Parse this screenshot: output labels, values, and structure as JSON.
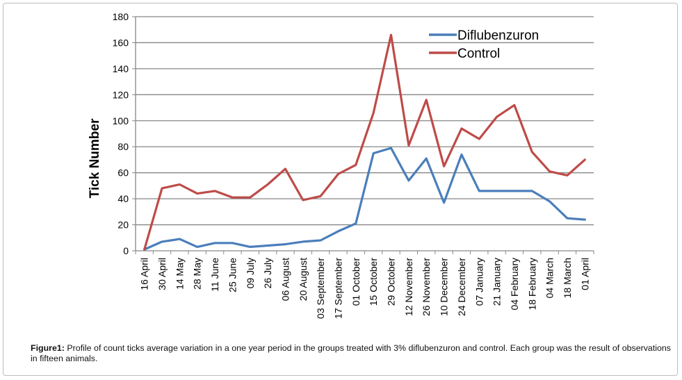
{
  "chart_data": {
    "type": "line",
    "ylabel": "Tick Number",
    "xlabel": "",
    "ylim": [
      0,
      180
    ],
    "yticks": [
      0,
      20,
      40,
      60,
      80,
      100,
      120,
      140,
      160,
      180
    ],
    "grid": true,
    "legend_position": "top-right",
    "categories": [
      "16 April",
      "30 April",
      "14 May",
      "28 May",
      "11 June",
      "25 June",
      "09 July",
      "26 July",
      "06 August",
      "20 August",
      "03 September",
      "17 September",
      "01 October",
      "15 October",
      "29 October",
      "12 November",
      "26 November",
      "10 December",
      "24 December",
      "07 January",
      "21 January",
      "04 February",
      "18 February",
      "04 March",
      "18 March",
      "01 April"
    ],
    "series": [
      {
        "name": "Diflubenzuron",
        "color": "#4a7ebb",
        "values": [
          1,
          7,
          9,
          3,
          6,
          6,
          3,
          4,
          5,
          7,
          8,
          15,
          21,
          75,
          79,
          54,
          71,
          37,
          74,
          46,
          46,
          46,
          46,
          38,
          25,
          24
        ]
      },
      {
        "name": "Control",
        "color": "#be4b48",
        "values": [
          1,
          48,
          51,
          44,
          46,
          41,
          41,
          51,
          63,
          39,
          42,
          59,
          66,
          106,
          166,
          81,
          116,
          65,
          94,
          86,
          103,
          112,
          76,
          61,
          58,
          70
        ]
      }
    ]
  },
  "caption": {
    "label": "Figure1:",
    "text": " Profile of count ticks average variation in a one year period in the groups treated with 3% diflubenzuron and control. Each group was the result of observations in fifteen animals."
  }
}
